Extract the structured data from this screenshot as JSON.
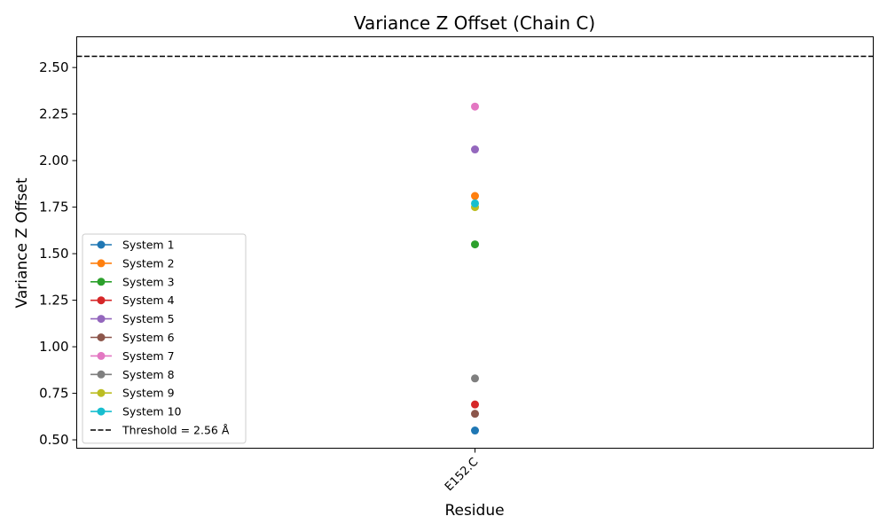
{
  "chart_data": {
    "type": "scatter",
    "title": "Variance Z Offset (Chain C)",
    "xlabel": "Residue",
    "ylabel": "Variance Z Offset",
    "categories": [
      "E152.C"
    ],
    "ylim": [
      0.455,
      2.665
    ],
    "yticks": [
      "0.50",
      "0.75",
      "1.00",
      "1.25",
      "1.50",
      "1.75",
      "2.00",
      "2.25",
      "2.50"
    ],
    "grid": false,
    "legend_position": "lower-left",
    "threshold": {
      "value": 2.56,
      "label": "Threshold = 2.56 Å",
      "color": "#000000",
      "style": "dashed"
    },
    "series": [
      {
        "name": "System 1",
        "color": "#1f77b4",
        "values": [
          0.55
        ]
      },
      {
        "name": "System 2",
        "color": "#ff7f0e",
        "values": [
          1.81
        ]
      },
      {
        "name": "System 3",
        "color": "#2ca02c",
        "values": [
          1.55
        ]
      },
      {
        "name": "System 4",
        "color": "#d62728",
        "values": [
          0.69
        ]
      },
      {
        "name": "System 5",
        "color": "#9467bd",
        "values": [
          2.06
        ]
      },
      {
        "name": "System 6",
        "color": "#8c564b",
        "values": [
          0.64
        ]
      },
      {
        "name": "System 7",
        "color": "#e377c2",
        "values": [
          2.29
        ]
      },
      {
        "name": "System 8",
        "color": "#7f7f7f",
        "values": [
          0.83
        ]
      },
      {
        "name": "System 9",
        "color": "#bcbd22",
        "values": [
          1.75
        ]
      },
      {
        "name": "System 10",
        "color": "#17becf",
        "values": [
          1.77
        ]
      }
    ]
  }
}
